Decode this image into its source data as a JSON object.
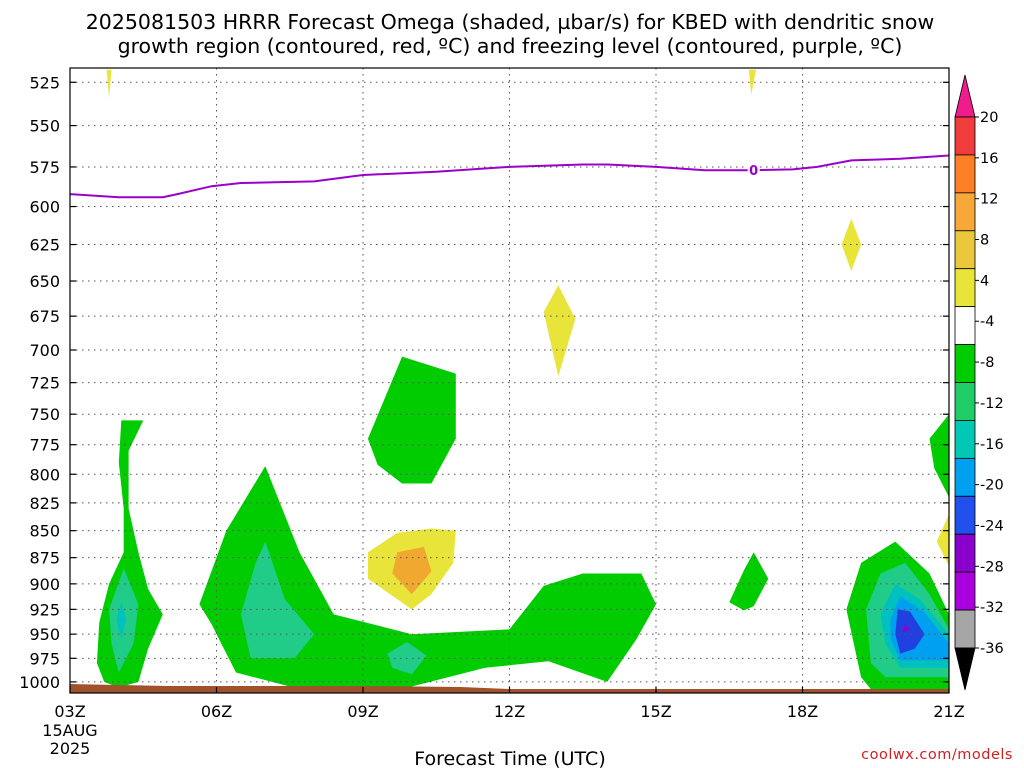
{
  "title_lines": [
    "2025081503 HRRR Forecast Omega (shaded, µbar/s) for KBED with dendritic snow",
    "growth region (contoured, red, ºC) and freezing level (contoured, purple, ºC)"
  ],
  "credit": "coolwx.com/models",
  "colors": {
    "freezing_level": "#9900cc",
    "ground": "#a0522d",
    "grid": "#555555"
  },
  "chart_data": {
    "type": "contour",
    "title": "2025081503 HRRR Forecast Omega (shaded, µbar/s) for KBED with dendritic snow growth region (contoured, red, ºC) and freezing level (contoured, purple, ºC)",
    "xlabel": "Forecast Time (UTC)",
    "ylabel": "",
    "xlim": [
      3,
      21
    ],
    "ylim": [
      1012,
      517
    ],
    "y_scale": "log-pressure (reversed)",
    "grid": true,
    "x_ticks": [
      {
        "value": 3,
        "label": "03Z",
        "sub": [
          "15AUG",
          "2025"
        ]
      },
      {
        "value": 6,
        "label": "06Z"
      },
      {
        "value": 9,
        "label": "09Z"
      },
      {
        "value": 12,
        "label": "12Z"
      },
      {
        "value": 15,
        "label": "15Z"
      },
      {
        "value": 18,
        "label": "18Z"
      },
      {
        "value": 21,
        "label": "21Z"
      }
    ],
    "y_ticks": [
      525,
      550,
      575,
      600,
      625,
      650,
      675,
      700,
      725,
      750,
      775,
      800,
      825,
      850,
      875,
      900,
      925,
      950,
      975,
      1000
    ],
    "colorbar": {
      "labels": [
        "20",
        "16",
        "12",
        "8",
        "4",
        "-4",
        "-8",
        "-12",
        "-16",
        "-20",
        "-24",
        "-28",
        "-32",
        "-36"
      ],
      "colors_top_to_bottom": [
        "#ee1c8c",
        "#f03c3c",
        "#ff7f27",
        "#f7a838",
        "#e9c83c",
        "#e8e43a",
        "#ffffff",
        "#00cc00",
        "#20cc66",
        "#00c8b4",
        "#00a0f0",
        "#2050ee",
        "#8a00cc",
        "#aa00dd",
        "#a6a6a6",
        "#000000"
      ]
    },
    "freezing_level": {
      "label": "0",
      "points": [
        [
          3.0,
          592
        ],
        [
          4.0,
          594
        ],
        [
          4.9,
          594
        ],
        [
          5.2,
          592
        ],
        [
          5.9,
          587
        ],
        [
          6.5,
          585
        ],
        [
          8.0,
          584
        ],
        [
          9.0,
          580
        ],
        [
          10.5,
          578
        ],
        [
          12.0,
          575
        ],
        [
          13.5,
          573.5
        ],
        [
          14.0,
          573.5
        ],
        [
          15.0,
          575
        ],
        [
          16.0,
          577
        ],
        [
          17.0,
          577
        ],
        [
          17.8,
          576.5
        ],
        [
          18.3,
          575
        ],
        [
          19.0,
          571
        ],
        [
          20.0,
          570
        ],
        [
          21.0,
          568
        ]
      ]
    },
    "omega_regions": [
      {
        "level": -4,
        "points": [
          [
            4.0,
            1006
          ],
          [
            3.7,
            1000
          ],
          [
            3.55,
            980
          ],
          [
            3.6,
            938
          ],
          [
            3.8,
            900
          ],
          [
            4.1,
            870
          ],
          [
            4.1,
            830
          ],
          [
            4.0,
            790
          ],
          [
            4.05,
            755
          ],
          [
            4.5,
            755
          ],
          [
            4.2,
            780
          ],
          [
            4.2,
            830
          ],
          [
            4.4,
            870
          ],
          [
            4.6,
            905
          ],
          [
            4.9,
            930
          ],
          [
            4.6,
            965
          ],
          [
            4.4,
            1000
          ]
        ]
      },
      {
        "level": -8,
        "points": [
          [
            4.0,
            990
          ],
          [
            3.85,
            960
          ],
          [
            3.8,
            925
          ],
          [
            4.1,
            885
          ],
          [
            4.4,
            920
          ],
          [
            4.3,
            960
          ]
        ]
      },
      {
        "level": -12,
        "points": [
          [
            4.05,
            955
          ],
          [
            3.95,
            935
          ],
          [
            4.05,
            918
          ],
          [
            4.15,
            935
          ]
        ]
      },
      {
        "level": -4,
        "points": [
          [
            5.9,
            940
          ],
          [
            5.65,
            920
          ],
          [
            6.2,
            850
          ],
          [
            7.0,
            793
          ],
          [
            7.7,
            870
          ],
          [
            8.4,
            930
          ],
          [
            10.0,
            950
          ],
          [
            12.0,
            945
          ],
          [
            12.7,
            902
          ],
          [
            13.5,
            890
          ],
          [
            14.7,
            890
          ],
          [
            15.0,
            920
          ],
          [
            14.6,
            955
          ],
          [
            14.0,
            1000
          ],
          [
            12.8,
            978
          ],
          [
            11.5,
            985
          ],
          [
            10.0,
            1005
          ],
          [
            7.5,
            1005
          ],
          [
            6.4,
            990
          ],
          [
            6.1,
            960
          ]
        ]
      },
      {
        "level": -8,
        "points": [
          [
            6.7,
            975
          ],
          [
            6.5,
            930
          ],
          [
            6.8,
            880
          ],
          [
            7.0,
            860
          ],
          [
            7.4,
            915
          ],
          [
            8.0,
            950
          ],
          [
            7.6,
            975
          ]
        ]
      },
      {
        "level": -8,
        "points": [
          [
            9.6,
            985
          ],
          [
            9.5,
            970
          ],
          [
            9.9,
            958
          ],
          [
            10.3,
            972
          ],
          [
            10.0,
            992
          ]
        ]
      },
      {
        "level": -4,
        "points": [
          [
            9.3,
            792
          ],
          [
            9.1,
            770
          ],
          [
            9.8,
            705
          ],
          [
            10.9,
            718
          ],
          [
            10.9,
            770
          ],
          [
            10.4,
            808
          ],
          [
            9.8,
            808
          ]
        ]
      },
      {
        "level": 4,
        "points": [
          [
            10.0,
            925
          ],
          [
            9.1,
            895
          ],
          [
            9.1,
            870
          ],
          [
            9.7,
            852
          ],
          [
            10.4,
            848
          ],
          [
            10.9,
            850
          ],
          [
            10.85,
            880
          ],
          [
            10.4,
            910
          ]
        ]
      },
      {
        "level": 8,
        "points": [
          [
            10.0,
            910
          ],
          [
            9.6,
            890
          ],
          [
            9.7,
            870
          ],
          [
            10.25,
            865
          ],
          [
            10.4,
            888
          ]
        ]
      },
      {
        "level": 4,
        "points": [
          [
            13.0,
            720
          ],
          [
            12.7,
            672
          ],
          [
            13.0,
            653
          ],
          [
            13.35,
            677
          ]
        ]
      },
      {
        "level": 4,
        "points": [
          [
            19.0,
            643
          ],
          [
            18.8,
            625
          ],
          [
            19.0,
            608
          ],
          [
            19.2,
            625
          ]
        ]
      },
      {
        "level": 4,
        "points": [
          [
            3.8,
            534
          ],
          [
            3.75,
            518
          ],
          [
            3.85,
            518
          ]
        ]
      },
      {
        "level": 4,
        "points": [
          [
            16.95,
            532
          ],
          [
            16.9,
            518
          ],
          [
            17.05,
            518
          ]
        ]
      },
      {
        "level": -4,
        "points": [
          [
            16.8,
            926
          ],
          [
            16.5,
            918
          ],
          [
            16.8,
            887
          ],
          [
            17.0,
            870
          ],
          [
            17.3,
            895
          ],
          [
            17.0,
            922
          ]
        ]
      },
      {
        "level": -4,
        "points": [
          [
            19.4,
            1008
          ],
          [
            19.2,
            995
          ],
          [
            18.9,
            925
          ],
          [
            19.2,
            880
          ],
          [
            19.9,
            860
          ],
          [
            20.6,
            890
          ],
          [
            21.0,
            930
          ],
          [
            21.0,
            1008
          ]
        ]
      },
      {
        "level": -8,
        "points": [
          [
            19.7,
            995
          ],
          [
            19.4,
            980
          ],
          [
            19.3,
            925
          ],
          [
            19.6,
            890
          ],
          [
            20.1,
            880
          ],
          [
            20.6,
            910
          ],
          [
            21.0,
            945
          ],
          [
            21.0,
            995
          ]
        ]
      },
      {
        "level": -12,
        "points": [
          [
            20.0,
            985
          ],
          [
            19.7,
            960
          ],
          [
            19.6,
            930
          ],
          [
            19.9,
            900
          ],
          [
            20.4,
            915
          ],
          [
            21.0,
            950
          ],
          [
            21.0,
            985
          ]
        ]
      },
      {
        "level": -16,
        "points": [
          [
            20.0,
            977
          ],
          [
            19.8,
            955
          ],
          [
            19.8,
            935
          ],
          [
            20.0,
            912
          ],
          [
            20.5,
            928
          ],
          [
            21.0,
            960
          ],
          [
            21.0,
            977
          ]
        ]
      },
      {
        "level": -20,
        "points": [
          [
            20.0,
            970
          ],
          [
            19.9,
            950
          ],
          [
            19.95,
            925
          ],
          [
            20.2,
            927
          ],
          [
            20.5,
            950
          ],
          [
            20.3,
            965
          ]
        ]
      },
      {
        "level": -24,
        "points": [
          [
            20.05,
            948
          ],
          [
            20.1,
            940
          ],
          [
            20.2,
            945
          ]
        ]
      },
      {
        "level": -4,
        "points": [
          [
            21.0,
            820
          ],
          [
            20.7,
            795
          ],
          [
            20.6,
            770
          ],
          [
            21.0,
            750
          ]
        ]
      },
      {
        "level": 4,
        "points": [
          [
            21.0,
            883
          ],
          [
            20.75,
            860
          ],
          [
            21.0,
            835
          ]
        ]
      }
    ]
  }
}
